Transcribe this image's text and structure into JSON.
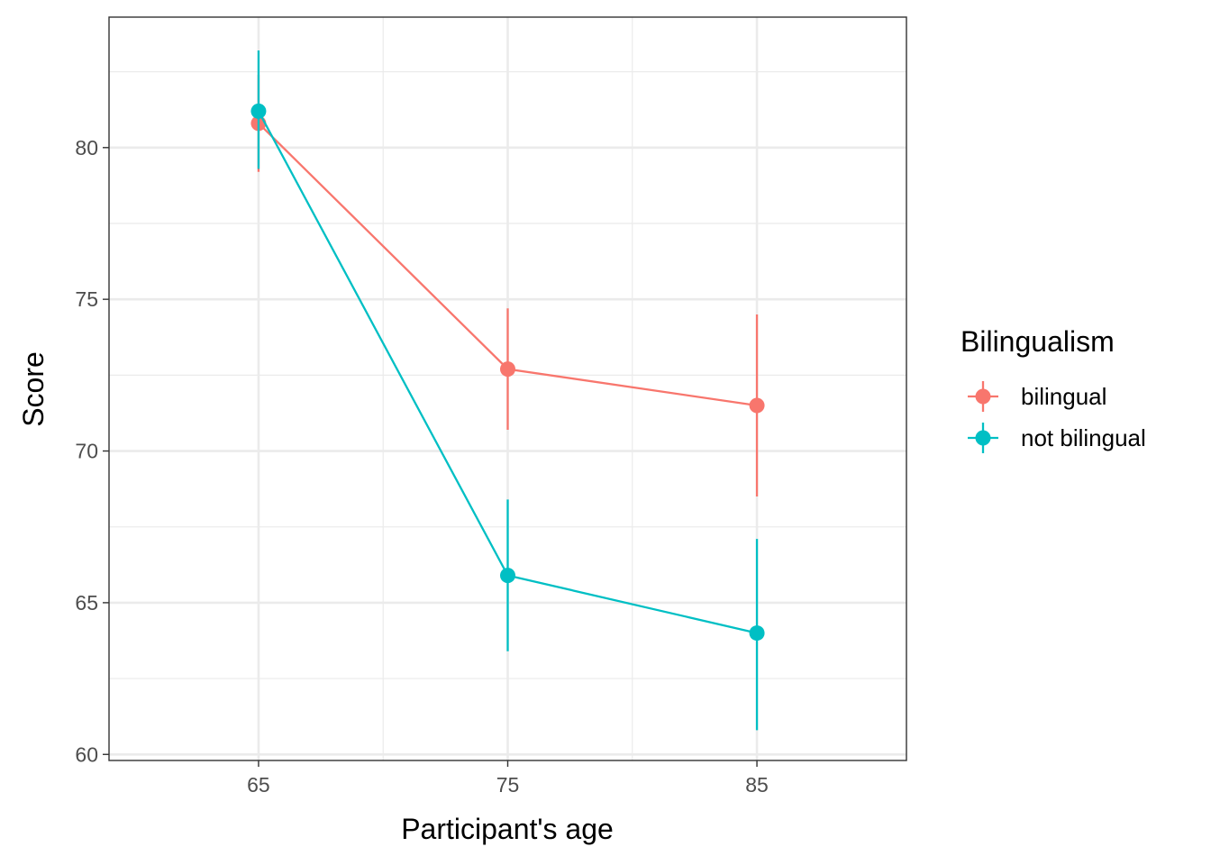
{
  "chart_data": {
    "type": "line",
    "xlabel": "Participant's age",
    "ylabel": "Score",
    "x": [
      65,
      75,
      85
    ],
    "x_ticks": [
      "65",
      "75",
      "85"
    ],
    "y_ticks": [
      "60",
      "65",
      "70",
      "75",
      "80"
    ],
    "xlim": [
      59,
      91
    ],
    "ylim": [
      59.8,
      84.3
    ],
    "grid": true,
    "legend": {
      "title": "Bilingualism",
      "placement": "right"
    },
    "series": [
      {
        "name": "bilingual",
        "color": "#F8766D",
        "values": [
          80.8,
          72.7,
          71.5
        ],
        "lower": [
          79.2,
          70.7,
          68.5
        ],
        "upper": [
          82.4,
          74.7,
          74.5
        ]
      },
      {
        "name": "not bilingual",
        "color": "#00BFC4",
        "values": [
          81.2,
          65.9,
          64.0
        ],
        "lower": [
          79.3,
          63.4,
          60.8
        ],
        "upper": [
          83.2,
          68.4,
          67.1
        ]
      }
    ]
  }
}
